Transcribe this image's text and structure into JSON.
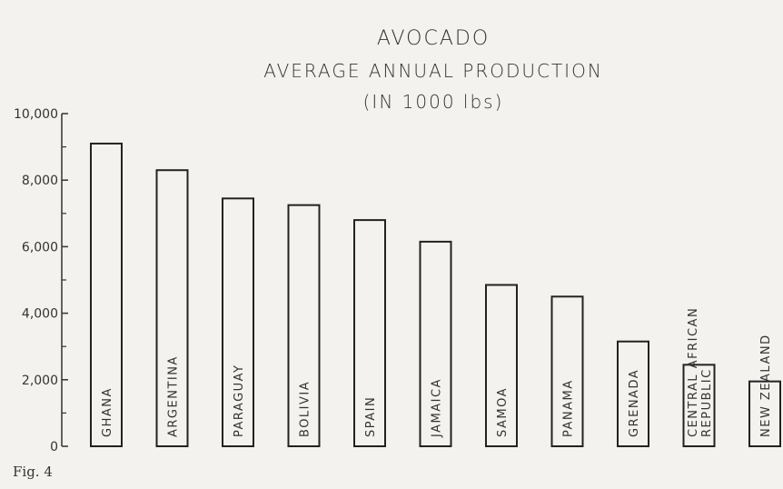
{
  "chart_data": {
    "type": "bar",
    "title_lines": [
      "AVOCADO",
      "AVERAGE ANNUAL PRODUCTION",
      "(IN 1000 lbs)"
    ],
    "categories": [
      [
        "GHANA"
      ],
      [
        "ARGENTINA"
      ],
      [
        "PARAGUAY"
      ],
      [
        "BOLIVIA"
      ],
      [
        "SPAIN"
      ],
      [
        "JAMAICA"
      ],
      [
        "SAMOA"
      ],
      [
        "PANAMA"
      ],
      [
        "GRENADA"
      ],
      [
        "CENTRAL AFRICAN",
        "REPUBLIC"
      ],
      [
        "NEW ZEALAND"
      ]
    ],
    "values": [
      9100,
      8300,
      7450,
      7250,
      6800,
      6150,
      4850,
      4500,
      3150,
      2450,
      1950
    ],
    "ylim": [
      0,
      10000
    ],
    "yticks": [
      0,
      2000,
      4000,
      6000,
      8000,
      10000
    ],
    "ytick_labels": [
      "0",
      "2,000",
      "4,000",
      "6,000",
      "8,000",
      "10,000"
    ],
    "grid": false,
    "caption": "Fig. 4"
  }
}
